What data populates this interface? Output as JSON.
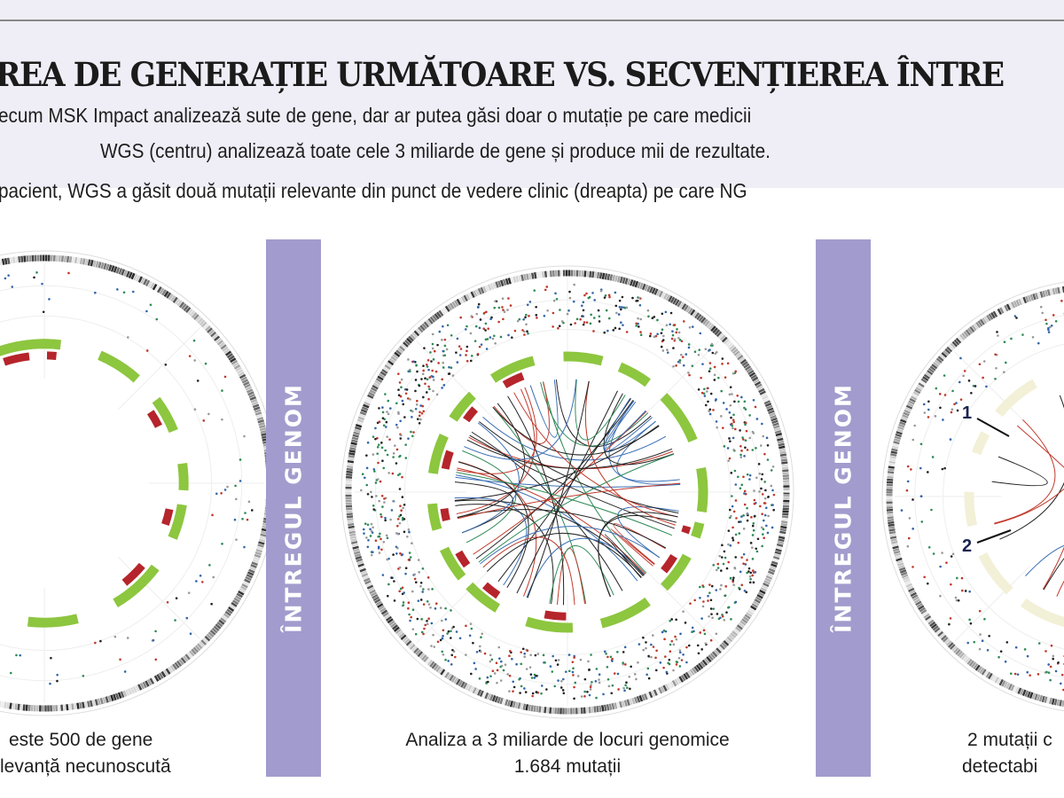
{
  "header": {
    "title": "EREA DE GENERAȚIE URMĂTOARE VS. SECVENȚIEREA ÎNTRE",
    "line1": "ecum MSK Impact analizează sute de gene, dar ar putea găsi doar o mutație pe care medicii",
    "line2": "WGS (centru) analizează toate cele 3 miliarde de gene și produce mii de rezultate.",
    "line3": "pacient, WGS a găsit două mutații relevante din punct de vedere clinic (dreapta) pe care NG"
  },
  "dividers": [
    {
      "label": "ÎNTREGUL GENOM"
    },
    {
      "label": "ÎNTREGUL GENOM"
    }
  ],
  "captions": {
    "left": [
      "este 500 de gene",
      "levanță necunoscută"
    ],
    "center": [
      "Analiza a 3 miliarde de locuri genomice",
      "1.684 mutații"
    ],
    "right": [
      "2 mutații c",
      "detectabi"
    ]
  },
  "markers": [
    "1",
    "2"
  ],
  "colors": {
    "background_top": "#efeef6",
    "divider": "#a19ccd",
    "gene_ring": "#8dc63f",
    "mutation": "#b5252b",
    "chord": "#222222"
  }
}
